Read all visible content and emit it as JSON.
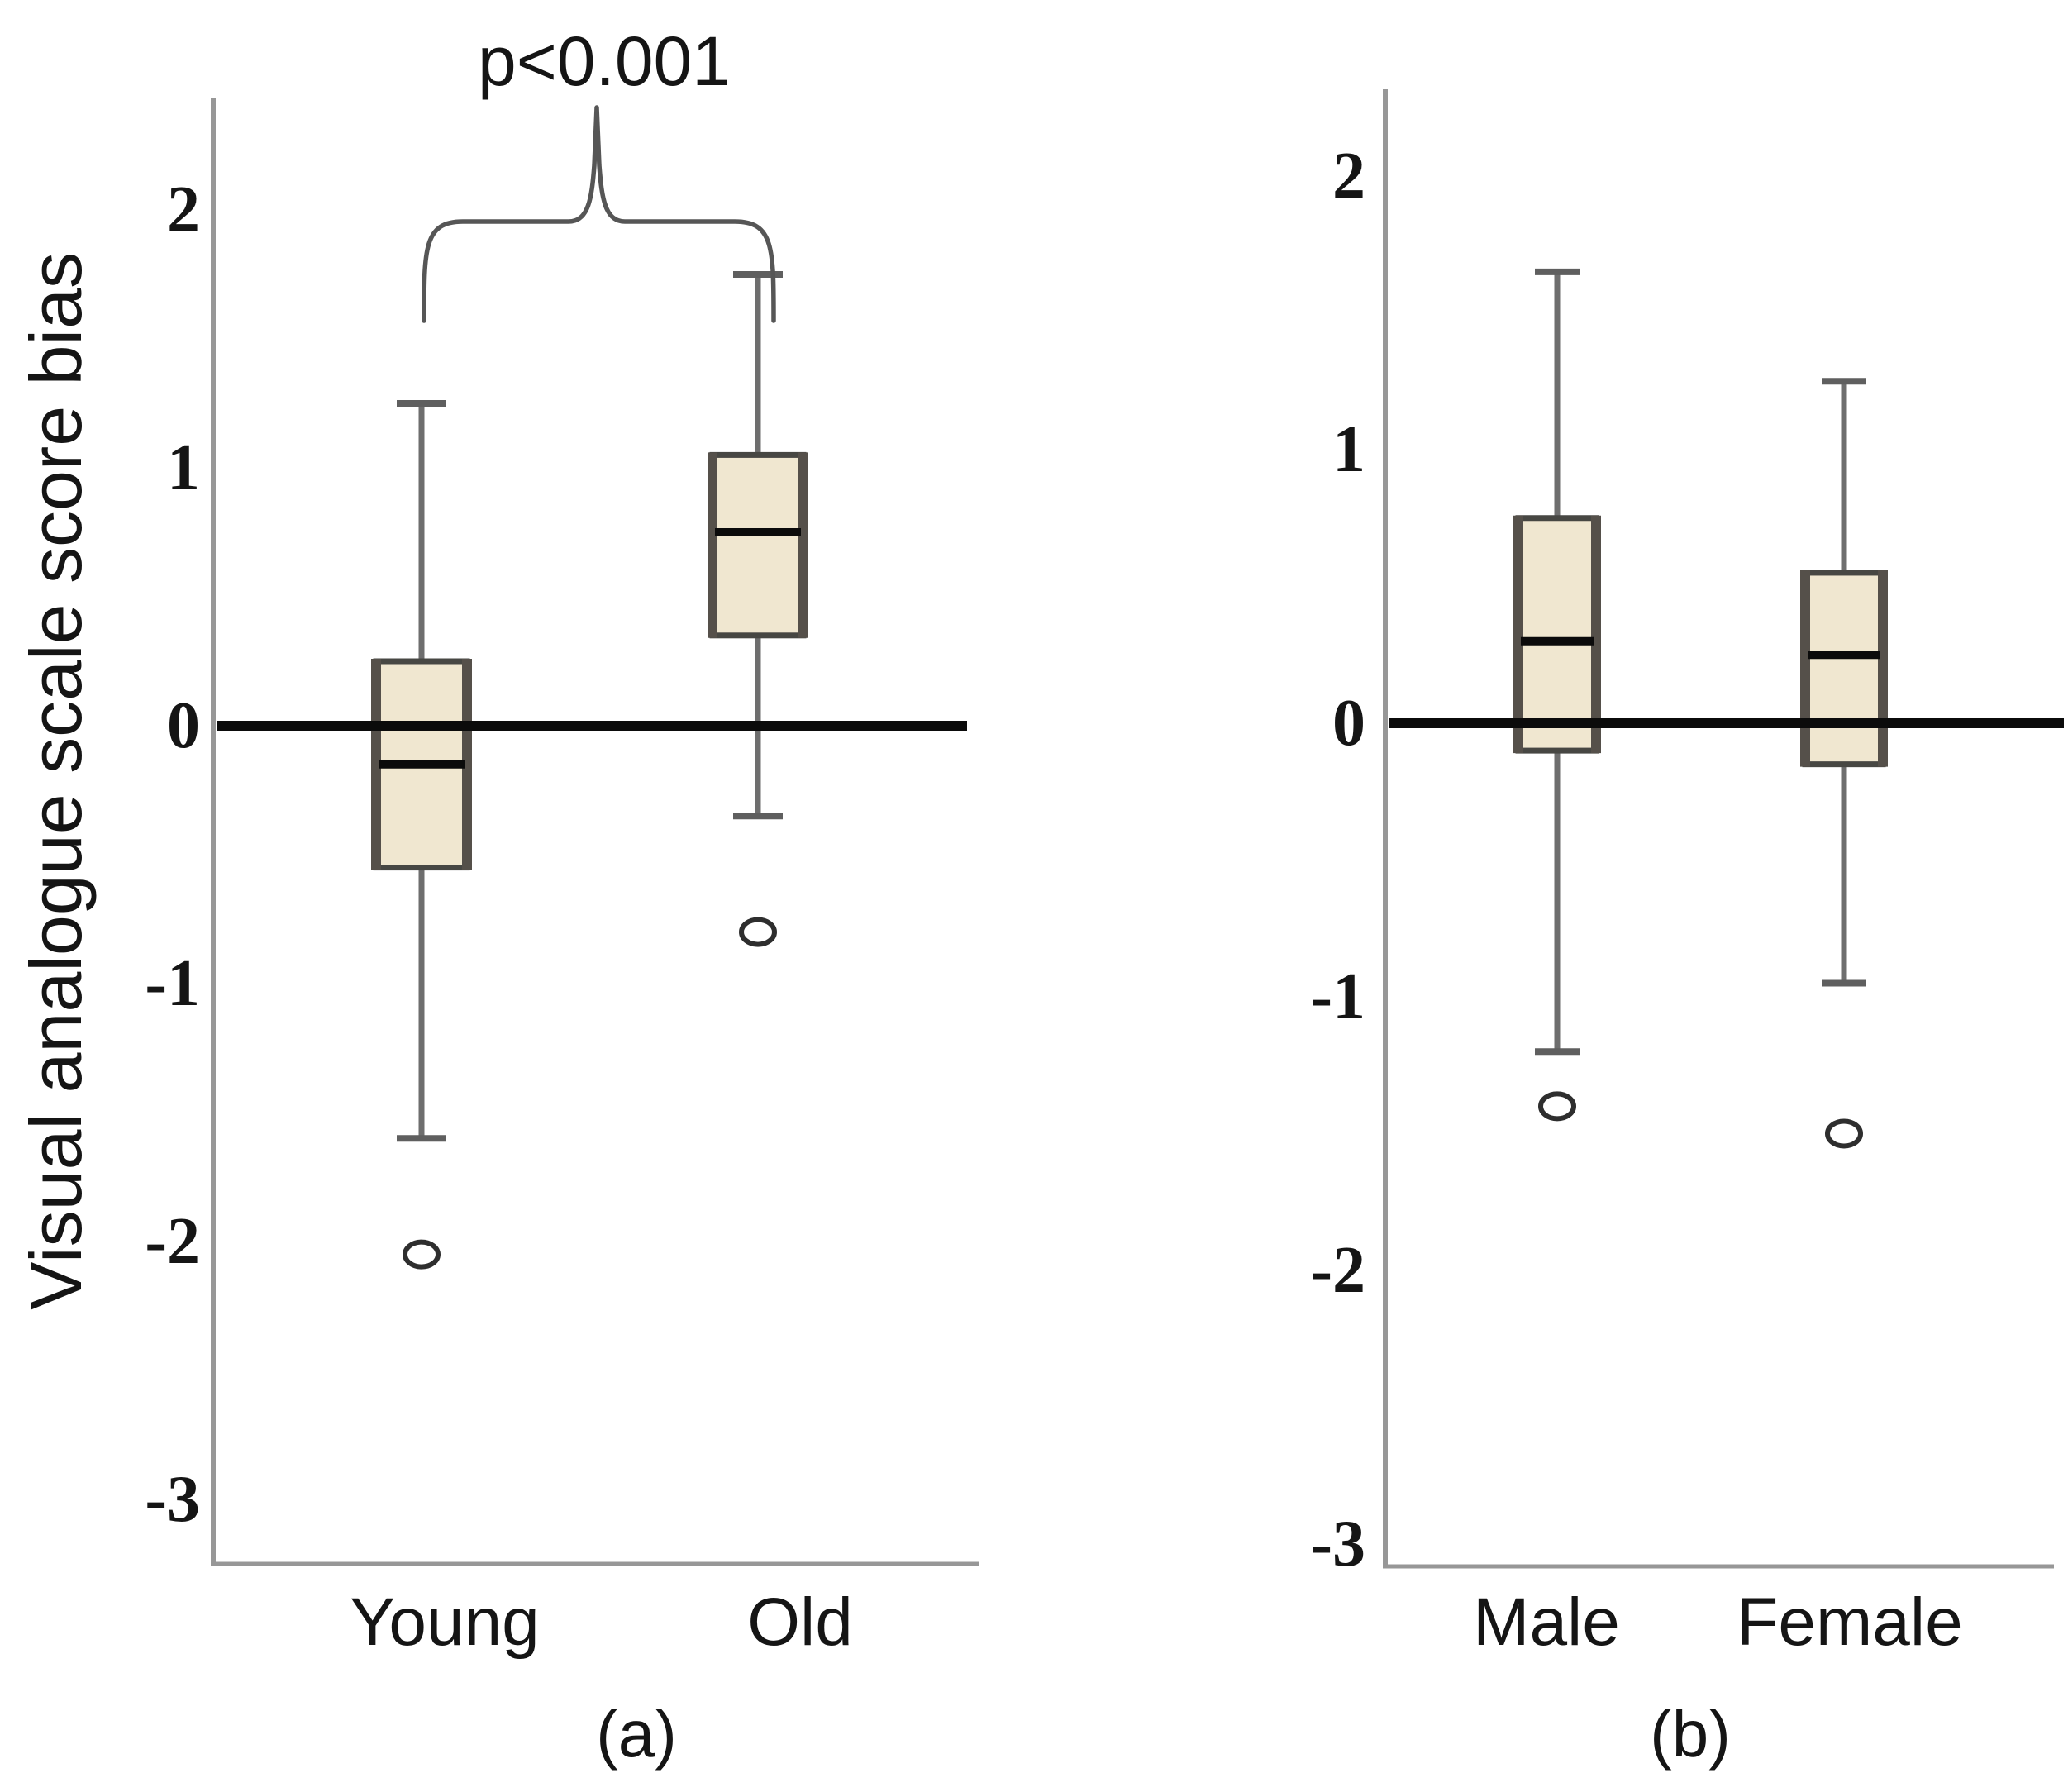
{
  "figure": {
    "y_axis_label": "Visual analogue scale score bias",
    "significance_label": "p<0.001",
    "background_color": "#ffffff"
  },
  "chart_data": [
    {
      "type": "boxplot",
      "caption": "(a)",
      "categories": [
        "Young",
        "Old"
      ],
      "xlabel": "",
      "ylabel": "Visual analogue scale score bias",
      "ylim": [
        -3.25,
        2.45
      ],
      "yticks": [
        2,
        1,
        0,
        -1,
        -2,
        -3
      ],
      "zero_reference_line": 0,
      "annotation": {
        "text": "p<0.001",
        "between": [
          "Young",
          "Old"
        ]
      },
      "series": [
        {
          "name": "Young",
          "whisker_low": -1.6,
          "q1": -0.55,
          "median": -0.15,
          "q3": 0.25,
          "whisker_high": 1.25,
          "outliers": [
            -2.05
          ]
        },
        {
          "name": "Old",
          "whisker_low": -0.35,
          "q1": 0.35,
          "median": 0.75,
          "q3": 1.05,
          "whisker_high": 1.75,
          "outliers": [
            -0.8
          ]
        }
      ]
    },
    {
      "type": "boxplot",
      "caption": "(b)",
      "categories": [
        "Male",
        "Female"
      ],
      "xlabel": "",
      "ylabel": "Visual analogue scale score bias",
      "ylim": [
        -3.3,
        2.3
      ],
      "yticks": [
        2,
        1,
        0,
        -1,
        -2,
        -3
      ],
      "zero_reference_line": 0,
      "series": [
        {
          "name": "Male",
          "whisker_low": -1.2,
          "q1": -0.1,
          "median": 0.3,
          "q3": 0.75,
          "whisker_high": 1.65,
          "outliers": [
            -1.4
          ]
        },
        {
          "name": "Female",
          "whisker_low": -0.95,
          "q1": -0.15,
          "median": 0.25,
          "q3": 0.55,
          "whisker_high": 1.25,
          "outliers": [
            -1.5
          ]
        }
      ]
    }
  ],
  "colors": {
    "box_fill": "#F0E7D0",
    "box_border": "#474743",
    "box_side_accent": "#55504a",
    "whisker": "#6e6e6e",
    "median_line": "#0b0b0b",
    "zero_line": "#0b0b0b",
    "axis_line": "#979797",
    "brace": "#565656",
    "text": "#151515"
  }
}
